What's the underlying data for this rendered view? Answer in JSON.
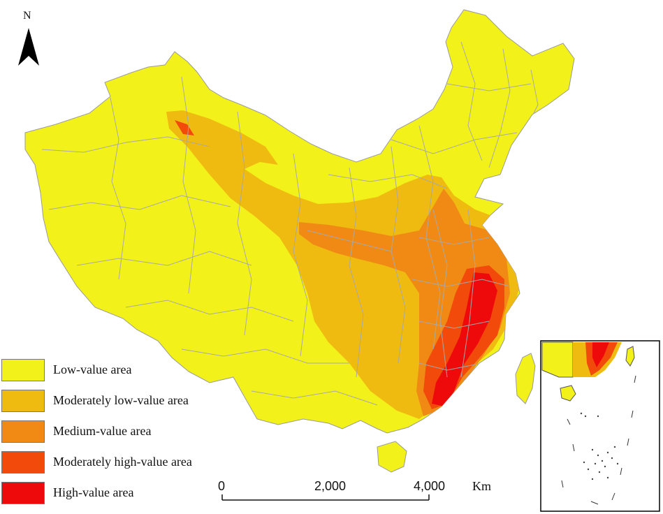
{
  "north_arrow": {
    "label": "N",
    "icon": "north-arrow-icon"
  },
  "legend": {
    "items": [
      {
        "label": "Low-value area",
        "color": "#f2f21a"
      },
      {
        "label": "Moderately low-value area",
        "color": "#f0bb10"
      },
      {
        "label": "Medium-value area",
        "color": "#f08a14"
      },
      {
        "label": "Moderately high-value area",
        "color": "#f24a0a"
      },
      {
        "label": "High-value area",
        "color": "#ee0a0a"
      }
    ]
  },
  "scale_bar": {
    "ticks": [
      "0",
      "2,000",
      "4,000"
    ],
    "unit": "Km"
  },
  "colors": {
    "boundary": "#a8a8a8",
    "outline": "#333333"
  }
}
